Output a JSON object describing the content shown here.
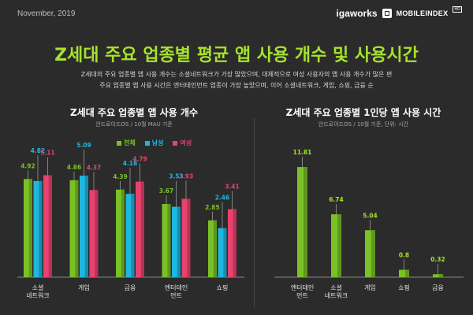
{
  "header": {
    "date": "November, 2019",
    "brand_igaworks": "igaworks",
    "brand_mobileindex": "MOBILEINDEX",
    "brand_version": "HD"
  },
  "title": "Z세대 주요 업종별 평균 앱 사용 개수 및 사용시간",
  "description": [
    "Z세대의 주요 업종별 앱 사용 개수는 소셜네트워크가 가장 많았으며, 대체적으로 여성 사용자의 앱 사용 개수가 많은 편",
    "주요 업종별 앱 사용 시간은 엔터테인먼트 업종이 가장 높았으며, 이어 소셜네트워크, 게임, 쇼핑, 금융 순"
  ],
  "colors": {
    "total": "#7ac127",
    "male": "#1fb6e0",
    "female": "#e8426e",
    "accent": "#a6e22e"
  },
  "chart_data": [
    {
      "type": "bar",
      "title": "Z세대 주요 업종별 앱 사용 개수",
      "subtitle": "안드로이드OS / 10월 MAU 기준",
      "categories": [
        "소셜\n네트워크",
        "게임",
        "금융",
        "엔터테인\n먼트",
        "쇼핑"
      ],
      "series": [
        {
          "name": "전체",
          "color": "#7ac127",
          "values": [
            4.92,
            4.86,
            4.39,
            3.67,
            2.85
          ]
        },
        {
          "name": "남성",
          "color": "#1fb6e0",
          "values": [
            4.82,
            5.09,
            4.18,
            3.53,
            2.46
          ]
        },
        {
          "name": "여성",
          "color": "#e8426e",
          "values": [
            5.11,
            4.37,
            4.79,
            3.93,
            3.41
          ]
        }
      ],
      "ylim": [
        0,
        6
      ],
      "legend": "top-center",
      "grid": false
    },
    {
      "type": "bar",
      "title": "Z세대 주요 업종별 1인당 앱 사용 시간",
      "subtitle": "안드로이드OS / 10월 기준, 단위: 시간",
      "categories": [
        "엔터테인\n먼트",
        "소셜\n네트워크",
        "게임",
        "쇼핑",
        "금융"
      ],
      "values": [
        11.81,
        6.74,
        5.04,
        0.8,
        0.32
      ],
      "ylim": [
        0,
        13
      ],
      "grid": false
    }
  ]
}
